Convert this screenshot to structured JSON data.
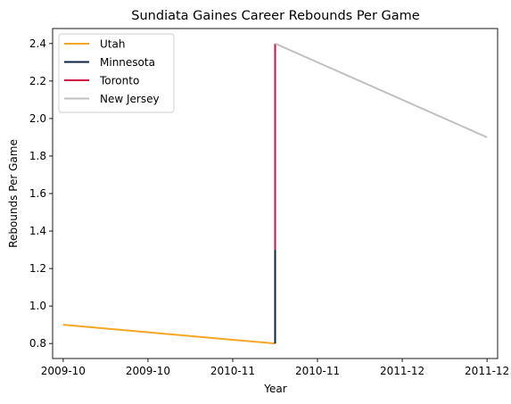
{
  "chart_data": {
    "type": "line",
    "title": "Sundiata Gaines Career Rebounds Per Game",
    "xlabel": "Year",
    "ylabel": "Rebounds Per Game",
    "ylim": [
      0.72,
      2.48
    ],
    "xlim": [
      -0.05,
      2.05
    ],
    "x_tick_positions": [
      0.0,
      0.4,
      0.8,
      1.2,
      1.6,
      2.0
    ],
    "x_tick_labels": [
      "2009-10",
      "2009-10",
      "2010-11",
      "2010-11",
      "2011-12",
      "2011-12"
    ],
    "y_ticks": [
      0.8,
      1.0,
      1.2,
      1.4,
      1.6,
      1.8,
      2.0,
      2.2,
      2.4
    ],
    "y_tick_labels": [
      "0.8",
      "1.0",
      "1.2",
      "1.4",
      "1.6",
      "1.8",
      "2.0",
      "2.2",
      "2.4"
    ],
    "legend_position": "top-left",
    "grid": false,
    "series": [
      {
        "name": "Utah",
        "color": "#f5a623",
        "x": [
          0,
          1
        ],
        "y": [
          0.9,
          0.8
        ]
      },
      {
        "name": "Minnesota",
        "color": "#0c2340",
        "x": [
          1,
          1
        ],
        "y": [
          0.8,
          1.3
        ]
      },
      {
        "name": "Toronto",
        "color": "#ce1141",
        "x": [
          1,
          1
        ],
        "y": [
          1.3,
          2.4
        ]
      },
      {
        "name": "New Jersey",
        "color": "#c0c0c0",
        "x": [
          1,
          2
        ],
        "y": [
          2.4,
          1.9
        ]
      }
    ]
  }
}
